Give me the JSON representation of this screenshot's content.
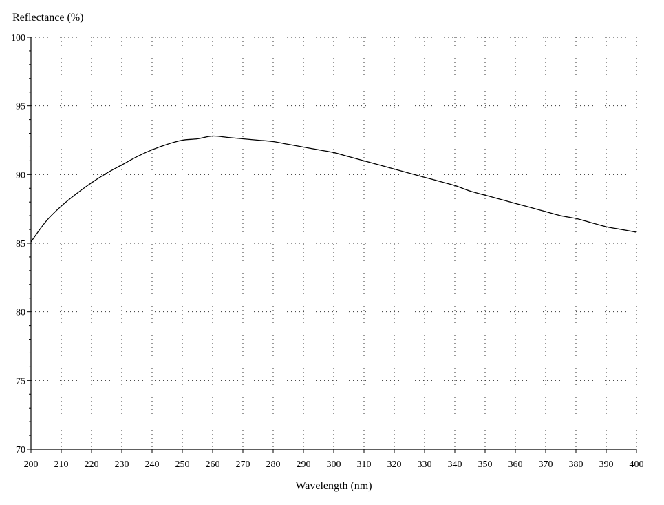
{
  "chart_data": {
    "type": "line",
    "title": "",
    "xlabel": "Wavelength (nm)",
    "ylabel": "Reflectance (%)",
    "xlim": [
      200,
      400
    ],
    "ylim": [
      70,
      100
    ],
    "xticks": [
      200,
      210,
      220,
      230,
      240,
      250,
      260,
      270,
      280,
      290,
      300,
      310,
      320,
      330,
      340,
      350,
      360,
      370,
      380,
      390,
      400
    ],
    "yticks": [
      70,
      75,
      80,
      85,
      90,
      95,
      100
    ],
    "grid": true,
    "colors": {
      "line": "#000000",
      "grid": "#333333",
      "background": "#ffffff"
    },
    "series": [
      {
        "x": [
          200,
          205,
          210,
          215,
          220,
          225,
          230,
          235,
          240,
          245,
          250,
          255,
          260,
          265,
          270,
          275,
          280,
          285,
          290,
          295,
          300,
          305,
          310,
          315,
          320,
          325,
          330,
          335,
          340,
          345,
          350,
          355,
          360,
          365,
          370,
          375,
          380,
          385,
          390,
          395,
          400
        ],
        "y": [
          85.1,
          86.6,
          87.7,
          88.6,
          89.4,
          90.1,
          90.7,
          91.3,
          91.8,
          92.2,
          92.5,
          92.6,
          92.8,
          92.7,
          92.6,
          92.5,
          92.4,
          92.2,
          92.0,
          91.8,
          91.6,
          91.3,
          91.0,
          90.7,
          90.4,
          90.1,
          89.8,
          89.5,
          89.2,
          88.8,
          88.5,
          88.2,
          87.9,
          87.6,
          87.3,
          87.0,
          86.8,
          86.5,
          86.2,
          86.0,
          85.8
        ]
      }
    ]
  }
}
